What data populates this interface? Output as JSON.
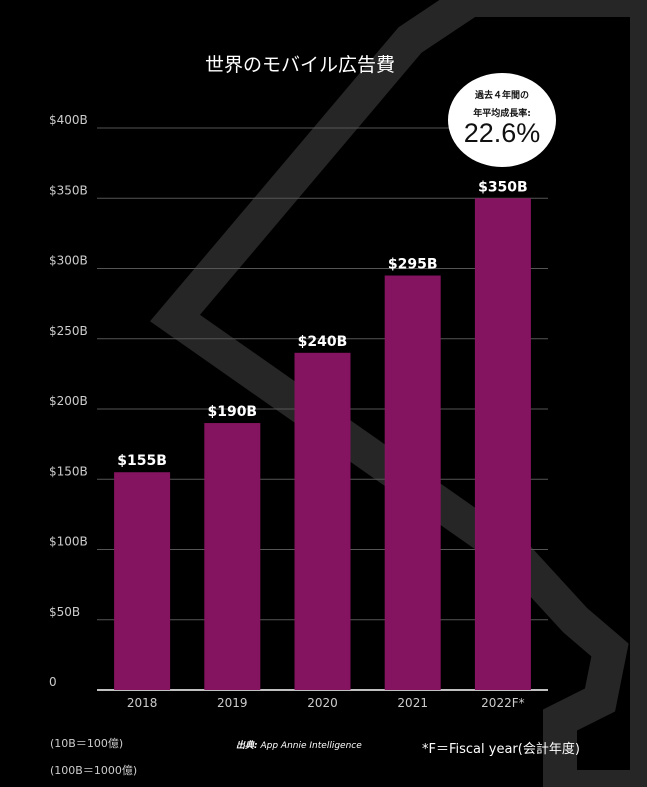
{
  "chart_data": {
    "type": "bar",
    "title": "世界のモバイル広告費",
    "categories": [
      "2018",
      "2019",
      "2020",
      "2021",
      "2022F*"
    ],
    "values": [
      155,
      190,
      240,
      295,
      350
    ],
    "value_labels": [
      "$155B",
      "$190B",
      "$240B",
      "$295B",
      "$350B"
    ],
    "y_ticks": [
      0,
      50,
      100,
      150,
      200,
      250,
      300,
      350,
      400
    ],
    "y_tick_labels": [
      "0",
      "$50B",
      "$100B",
      "$150B",
      "$200B",
      "$250B",
      "$300B",
      "$350B",
      "$400B"
    ],
    "ylim": [
      0,
      400
    ],
    "unit": "B (billion USD)",
    "grid": true,
    "bar_color": "#84145f"
  },
  "badge": {
    "line1": "過去４年間の",
    "line2": "年平均成長率:",
    "value": "22.6%"
  },
  "footer": {
    "note1": "(10B＝100億)",
    "note2": "(100B＝1000億)",
    "source_prefix": "出典:",
    "source_name": "App Annie Intelligence",
    "fiscal_note": "*F＝Fiscal year(会計年度)"
  }
}
